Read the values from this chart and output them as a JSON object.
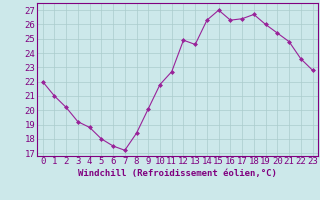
{
  "x": [
    0,
    1,
    2,
    3,
    4,
    5,
    6,
    7,
    8,
    9,
    10,
    11,
    12,
    13,
    14,
    15,
    16,
    17,
    18,
    19,
    20,
    21,
    22,
    23
  ],
  "y": [
    22,
    21,
    20.2,
    19.2,
    18.8,
    18.0,
    17.5,
    17.2,
    18.4,
    20.1,
    21.8,
    22.7,
    24.9,
    24.6,
    26.3,
    27.0,
    26.3,
    26.4,
    26.7,
    26.0,
    25.4,
    24.8,
    23.6,
    22.8
  ],
  "line_color": "#992299",
  "marker_color": "#992299",
  "bg_color": "#cce8ea",
  "grid_color": "#aacccc",
  "xlabel": "Windchill (Refroidissement éolien,°C)",
  "ylabel_ticks": [
    17,
    18,
    19,
    20,
    21,
    22,
    23,
    24,
    25,
    26,
    27
  ],
  "ylim": [
    16.8,
    27.5
  ],
  "xlim": [
    -0.5,
    23.5
  ],
  "xticks": [
    0,
    1,
    2,
    3,
    4,
    5,
    6,
    7,
    8,
    9,
    10,
    11,
    12,
    13,
    14,
    15,
    16,
    17,
    18,
    19,
    20,
    21,
    22,
    23
  ],
  "title_color": "#800080",
  "font_size_xlabel": 6.5,
  "font_size_ticks": 6.5
}
